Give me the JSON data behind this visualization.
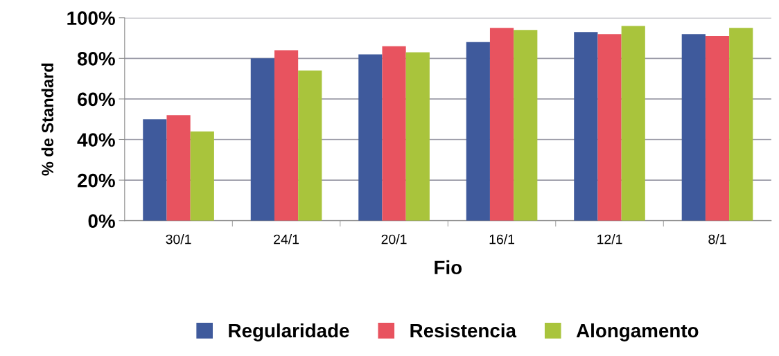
{
  "chart_data": {
    "type": "bar",
    "xlabel": "Fio",
    "ylabel": "% de Standard",
    "categories": [
      "30/1",
      "24/1",
      "20/1",
      "16/1",
      "12/1",
      "8/1"
    ],
    "series": [
      {
        "name": "Regularidade",
        "color": "#3f5a9c",
        "values": [
          50,
          80,
          82,
          88,
          93,
          92
        ]
      },
      {
        "name": "Resistencia",
        "color": "#e8535f",
        "values": [
          52,
          84,
          86,
          95,
          92,
          91
        ]
      },
      {
        "name": "Alongamento",
        "color": "#a9c43c",
        "values": [
          44,
          74,
          83,
          94,
          96,
          95
        ]
      }
    ],
    "ylim": [
      0,
      100
    ],
    "yticks": [
      {
        "value": 0,
        "label": "0%"
      },
      {
        "value": 20,
        "label": "20%"
      },
      {
        "value": 40,
        "label": "40%"
      },
      {
        "value": 60,
        "label": "60%"
      },
      {
        "value": 80,
        "label": "80%"
      },
      {
        "value": 100,
        "label": "100%"
      }
    ],
    "grid": "y",
    "legend": "bottom"
  }
}
